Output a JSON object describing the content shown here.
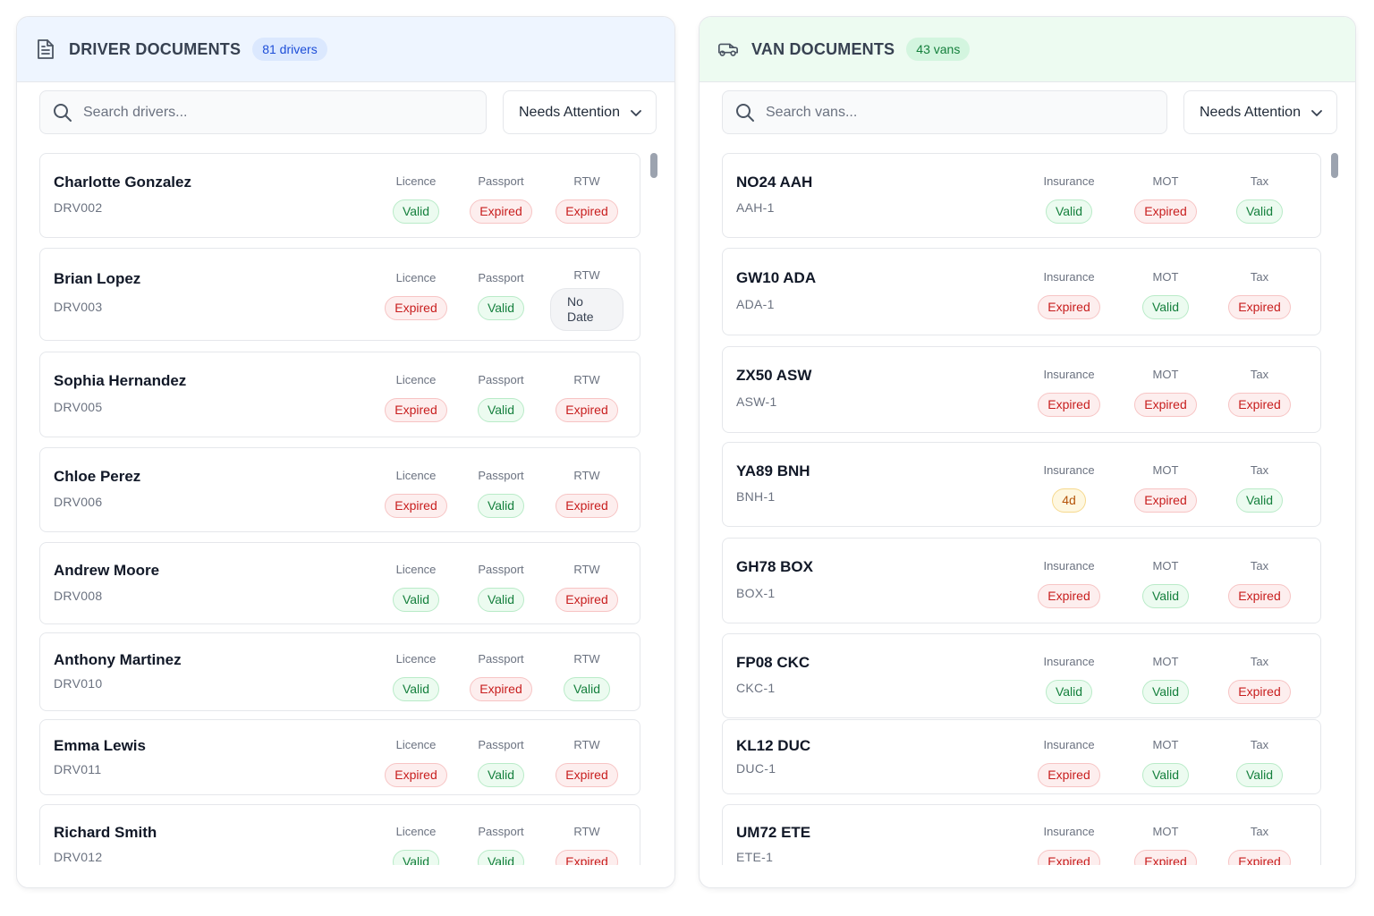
{
  "drivers": {
    "title": "DRIVER DOCUMENTS",
    "count": "81 drivers",
    "search_placeholder": "Search drivers...",
    "filter": "Needs Attention",
    "doc_labels": [
      "Licence",
      "Passport",
      "RTW"
    ],
    "rows": [
      {
        "name": "Charlotte Gonzalez",
        "id": "DRV002",
        "docs": [
          {
            "status": "valid",
            "text": "Valid"
          },
          {
            "status": "expired",
            "text": "Expired"
          },
          {
            "status": "expired",
            "text": "Expired"
          }
        ]
      },
      {
        "name": "Brian Lopez",
        "id": "DRV003",
        "docs": [
          {
            "status": "expired",
            "text": "Expired"
          },
          {
            "status": "valid",
            "text": "Valid"
          },
          {
            "status": "nodate",
            "text": "No Date"
          }
        ]
      },
      {
        "name": "Sophia Hernandez",
        "id": "DRV005",
        "docs": [
          {
            "status": "expired",
            "text": "Expired"
          },
          {
            "status": "valid",
            "text": "Valid"
          },
          {
            "status": "expired",
            "text": "Expired"
          }
        ]
      },
      {
        "name": "Chloe Perez",
        "id": "DRV006",
        "docs": [
          {
            "status": "expired",
            "text": "Expired"
          },
          {
            "status": "valid",
            "text": "Valid"
          },
          {
            "status": "expired",
            "text": "Expired"
          }
        ]
      },
      {
        "name": "Andrew Moore",
        "id": "DRV008",
        "docs": [
          {
            "status": "valid",
            "text": "Valid"
          },
          {
            "status": "valid",
            "text": "Valid"
          },
          {
            "status": "expired",
            "text": "Expired"
          }
        ]
      },
      {
        "name": "Anthony Martinez",
        "id": "DRV010",
        "docs": [
          {
            "status": "valid",
            "text": "Valid"
          },
          {
            "status": "expired",
            "text": "Expired"
          },
          {
            "status": "valid",
            "text": "Valid"
          }
        ]
      },
      {
        "name": "Emma Lewis",
        "id": "DRV011",
        "docs": [
          {
            "status": "expired",
            "text": "Expired"
          },
          {
            "status": "valid",
            "text": "Valid"
          },
          {
            "status": "expired",
            "text": "Expired"
          }
        ]
      },
      {
        "name": "Richard Smith",
        "id": "DRV012",
        "docs": [
          {
            "status": "valid",
            "text": "Valid"
          },
          {
            "status": "valid",
            "text": "Valid"
          },
          {
            "status": "expired",
            "text": "Expired"
          }
        ]
      }
    ]
  },
  "vans": {
    "title": "VAN DOCUMENTS",
    "count": "43 vans",
    "search_placeholder": "Search vans...",
    "filter": "Needs Attention",
    "doc_labels": [
      "Insurance",
      "MOT",
      "Tax"
    ],
    "rows": [
      {
        "name": "NO24 AAH",
        "id": "AAH-1",
        "docs": [
          {
            "status": "valid",
            "text": "Valid"
          },
          {
            "status": "expired",
            "text": "Expired"
          },
          {
            "status": "valid",
            "text": "Valid"
          }
        ]
      },
      {
        "name": "GW10 ADA",
        "id": "ADA-1",
        "docs": [
          {
            "status": "expired",
            "text": "Expired"
          },
          {
            "status": "valid",
            "text": "Valid"
          },
          {
            "status": "expired",
            "text": "Expired"
          }
        ]
      },
      {
        "name": "ZX50 ASW",
        "id": "ASW-1",
        "docs": [
          {
            "status": "expired",
            "text": "Expired"
          },
          {
            "status": "expired",
            "text": "Expired"
          },
          {
            "status": "expired",
            "text": "Expired"
          }
        ]
      },
      {
        "name": "YA89 BNH",
        "id": "BNH-1",
        "docs": [
          {
            "status": "warn",
            "text": "4d"
          },
          {
            "status": "expired",
            "text": "Expired"
          },
          {
            "status": "valid",
            "text": "Valid"
          }
        ]
      },
      {
        "name": "GH78 BOX",
        "id": "BOX-1",
        "docs": [
          {
            "status": "expired",
            "text": "Expired"
          },
          {
            "status": "valid",
            "text": "Valid"
          },
          {
            "status": "expired",
            "text": "Expired"
          }
        ]
      },
      {
        "name": "FP08 CKC",
        "id": "CKC-1",
        "docs": [
          {
            "status": "valid",
            "text": "Valid"
          },
          {
            "status": "valid",
            "text": "Valid"
          },
          {
            "status": "expired",
            "text": "Expired"
          }
        ]
      },
      {
        "name": "KL12 DUC",
        "id": "DUC-1",
        "docs": [
          {
            "status": "expired",
            "text": "Expired"
          },
          {
            "status": "valid",
            "text": "Valid"
          },
          {
            "status": "valid",
            "text": "Valid"
          }
        ]
      },
      {
        "name": "UM72 ETE",
        "id": "ETE-1",
        "docs": [
          {
            "status": "expired",
            "text": "Expired"
          },
          {
            "status": "expired",
            "text": "Expired"
          },
          {
            "status": "expired",
            "text": "Expired"
          }
        ]
      }
    ]
  },
  "colors": {
    "valid": "#15803d",
    "expired": "#c81e1e",
    "warning": "#b45309",
    "driver_header_bg": "#eef5ff",
    "van_header_bg": "#edfbf1"
  },
  "icons": {
    "driver_header": "document-icon",
    "van_header": "van-icon",
    "search": "search-icon",
    "filter": "chevron-down-icon"
  }
}
